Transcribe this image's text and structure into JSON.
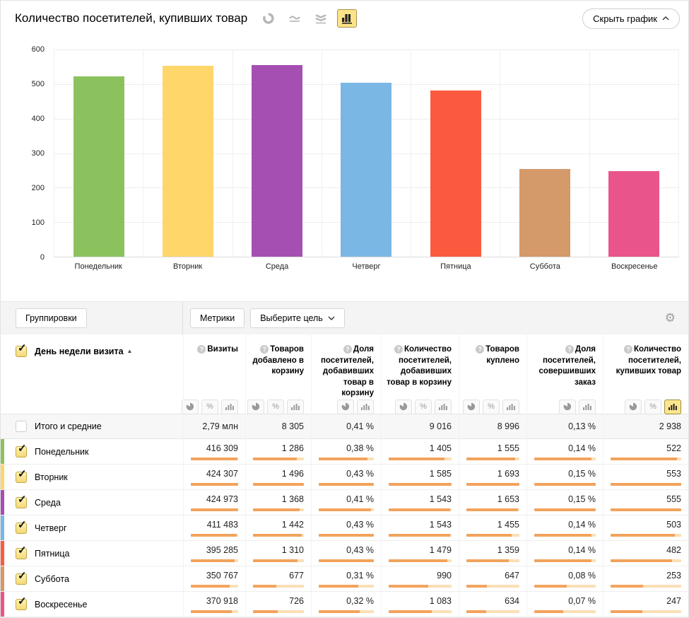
{
  "header": {
    "title": "Количество посетителей, купивших товар",
    "chart_type_icons": [
      "pie-chart-icon",
      "line-chart-icon",
      "stacked-area-icon",
      "column-chart-icon"
    ],
    "active_chart_type": "column-chart-icon",
    "hide_chart_label": "Скрыть график"
  },
  "chart_data": {
    "type": "bar",
    "title": "Количество посетителей, купивших товар",
    "categories": [
      "Понедельник",
      "Вторник",
      "Среда",
      "Четверг",
      "Пятница",
      "Суббота",
      "Воскресенье"
    ],
    "values": [
      522,
      553,
      555,
      503,
      482,
      253,
      247
    ],
    "colors": [
      "#8cc25e",
      "#fed66a",
      "#a64fb3",
      "#7ab7e5",
      "#fb5a3f",
      "#d49a69",
      "#e9558a"
    ],
    "xlabel": "",
    "ylabel": "",
    "ylim": [
      0,
      600
    ],
    "yticks": [
      600,
      500,
      400,
      300,
      200,
      100,
      0
    ],
    "grid": true,
    "legend": false
  },
  "controls": {
    "groupings_label": "Группировки",
    "metrics_label": "Метрики",
    "select_goal_label": "Выберите цель",
    "gear_icon": "gear-icon"
  },
  "table": {
    "dimension_header": "День недели визита",
    "sort_direction": "asc",
    "columns": [
      {
        "label": "Визиты",
        "toggles": [
          "pie",
          "percent",
          "bars"
        ]
      },
      {
        "label": "Товаров добавлено в корзину",
        "toggles": [
          "pie",
          "percent",
          "bars"
        ]
      },
      {
        "label": "Доля посетителей, добавивших товар в корзину",
        "toggles": [
          "pie",
          "bars"
        ]
      },
      {
        "label": "Количество посетителей, добавивших товар в корзину",
        "toggles": [
          "pie",
          "percent",
          "bars"
        ]
      },
      {
        "label": "Товаров куплено",
        "toggles": [
          "pie",
          "percent",
          "bars"
        ]
      },
      {
        "label": "Доля посетителей, совершивших заказ",
        "toggles": [
          "pie",
          "bars"
        ]
      },
      {
        "label": "Количество посетителей, купивших товар",
        "toggles": [
          "pie",
          "percent",
          "bars"
        ],
        "active_toggle": "bars"
      }
    ],
    "totals": {
      "label": "Итого и средние",
      "values": [
        "2,79 млн",
        "8 305",
        "0,41 %",
        "9 016",
        "8 996",
        "0,13 %",
        "2 938"
      ]
    },
    "rows": [
      {
        "label": "Понедельник",
        "values": [
          "416 309",
          "1 286",
          "0,38 %",
          "1 405",
          "1 555",
          "0,14 %",
          "522"
        ]
      },
      {
        "label": "Вторник",
        "values": [
          "424 307",
          "1 496",
          "0,43 %",
          "1 585",
          "1 693",
          "0,15 %",
          "553"
        ]
      },
      {
        "label": "Среда",
        "values": [
          "424 973",
          "1 368",
          "0,41 %",
          "1 543",
          "1 653",
          "0,15 %",
          "555"
        ]
      },
      {
        "label": "Четверг",
        "values": [
          "411 483",
          "1 442",
          "0,43 %",
          "1 543",
          "1 455",
          "0,14 %",
          "503"
        ]
      },
      {
        "label": "Пятница",
        "values": [
          "395 285",
          "1 310",
          "0,43 %",
          "1 479",
          "1 359",
          "0,14 %",
          "482"
        ]
      },
      {
        "label": "Суббота",
        "values": [
          "350 767",
          "677",
          "0,31 %",
          "990",
          "647",
          "0,08 %",
          "253"
        ]
      },
      {
        "label": "Воскресенье",
        "values": [
          "370 918",
          "726",
          "0,32 %",
          "1 083",
          "634",
          "0,07 %",
          "247"
        ]
      }
    ]
  }
}
